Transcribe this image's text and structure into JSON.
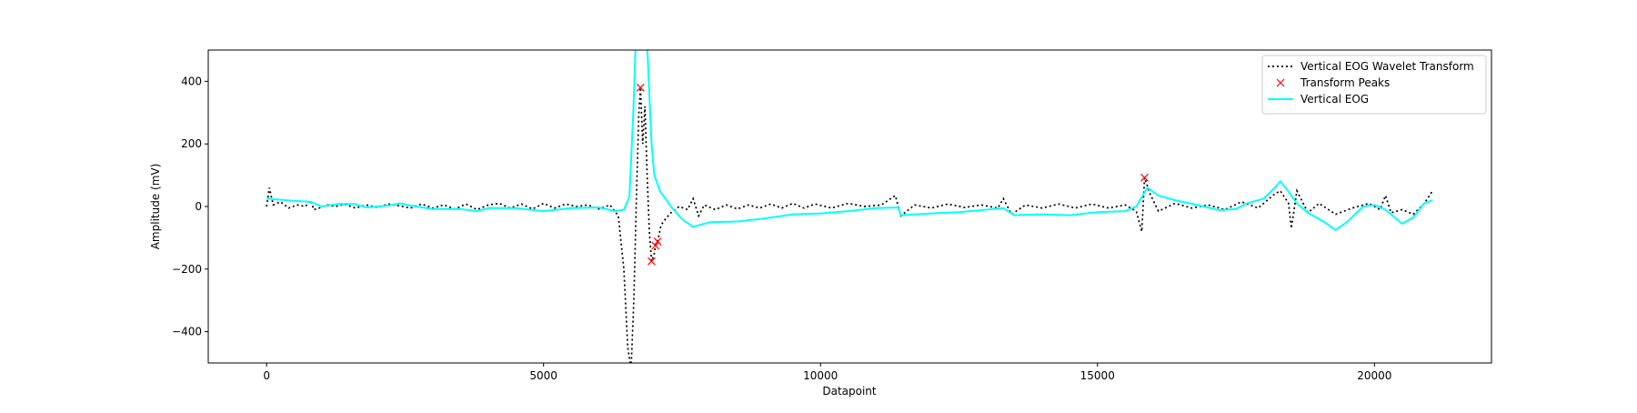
{
  "chart_data": {
    "type": "line",
    "xlabel": "Datapoint",
    "ylabel": "Amplitude (mV)",
    "xlim": [
      -1053,
      22113
    ],
    "ylim": [
      -500,
      500
    ],
    "xticks": [
      0,
      5000,
      10000,
      15000,
      20000
    ],
    "yticks": [
      {
        "value": -400,
        "label": "−400"
      },
      {
        "value": -200,
        "label": "−200"
      },
      0,
      200,
      400
    ],
    "legend": "upper right",
    "series": [
      {
        "name": "Vertical EOG Wavelet Transform",
        "color": "#000000",
        "linestyle": "dotted",
        "x": [
          0,
          50,
          120,
          250,
          400,
          550,
          700,
          800,
          850,
          950,
          1100,
          1250,
          1400,
          1600,
          1800,
          2000,
          2200,
          2400,
          2600,
          2800,
          3000,
          3200,
          3400,
          3600,
          3800,
          4000,
          4200,
          4400,
          4600,
          4800,
          5000,
          5200,
          5400,
          5600,
          5800,
          6000,
          6200,
          6350,
          6450,
          6520,
          6580,
          6630,
          6680,
          6720,
          6750,
          6790,
          6830,
          6870,
          6910,
          6950,
          7000,
          7020,
          7060,
          7120,
          7200,
          7300,
          7450,
          7600,
          7700,
          7800,
          7900,
          8100,
          8300,
          8500,
          8700,
          8900,
          9100,
          9300,
          9500,
          9700,
          9900,
          10200,
          10500,
          10800,
          11100,
          11350,
          11450,
          11700,
          12000,
          12300,
          12600,
          12900,
          13200,
          13300,
          13450,
          13700,
          14000,
          14300,
          14600,
          14900,
          15200,
          15500,
          15700,
          15800,
          15850,
          15950,
          16100,
          16400,
          16700,
          17000,
          17300,
          17600,
          17900,
          18200,
          18300,
          18450,
          18500,
          18600,
          18800,
          19000,
          19300,
          19600,
          19900,
          20100,
          20200,
          20300,
          20500,
          20700,
          20900,
          21050
        ],
        "values": [
          0,
          60,
          5,
          15,
          -5,
          5,
          0,
          20,
          -10,
          -5,
          5,
          0,
          8,
          -5,
          5,
          -3,
          8,
          2,
          -5,
          8,
          -5,
          5,
          -8,
          8,
          -10,
          5,
          10,
          -5,
          8,
          -8,
          10,
          -5,
          8,
          0,
          5,
          -8,
          5,
          -30,
          -200,
          -450,
          -520,
          -300,
          50,
          300,
          380,
          200,
          320,
          100,
          -80,
          -175,
          -150,
          -125,
          -112,
          -60,
          -40,
          -20,
          0,
          -10,
          25,
          -30,
          5,
          -10,
          5,
          -8,
          5,
          -5,
          8,
          -5,
          10,
          -5,
          8,
          -5,
          10,
          0,
          5,
          35,
          -30,
          5,
          -5,
          8,
          -3,
          5,
          -5,
          25,
          -25,
          5,
          -5,
          8,
          -5,
          8,
          -5,
          5,
          -15,
          -80,
          92,
          40,
          -15,
          10,
          -5,
          5,
          -10,
          15,
          -5,
          40,
          50,
          10,
          -70,
          50,
          -20,
          10,
          -25,
          -5,
          10,
          -10,
          35,
          -20,
          -10,
          -25,
          10,
          50
        ]
      },
      {
        "name": "Transform Peaks",
        "color": "#ff0000",
        "marker": "x",
        "x": [
          6750,
          6950,
          7020,
          7060,
          15850
        ],
        "values": [
          380,
          -175,
          -125,
          -112,
          92
        ]
      },
      {
        "name": "Vertical EOG",
        "color": "#00ffff",
        "linestyle": "solid",
        "x": [
          0,
          500,
          800,
          1000,
          1300,
          1600,
          1800,
          2200,
          2400,
          2700,
          3000,
          3500,
          3800,
          4000,
          4500,
          5000,
          5500,
          6000,
          6300,
          6450,
          6550,
          6620,
          6680,
          6850,
          6900,
          6950,
          7000,
          7100,
          7300,
          7500,
          7700,
          8000,
          8500,
          9000,
          9500,
          10000,
          10500,
          11000,
          11400,
          11450,
          12000,
          12500,
          13000,
          13300,
          13500,
          14000,
          14500,
          15000,
          15500,
          15700,
          15800,
          15900,
          16100,
          16400,
          16800,
          17200,
          17500,
          17700,
          18000,
          18200,
          18300,
          18400,
          18600,
          18800,
          19100,
          19300,
          19500,
          19800,
          20000,
          20200,
          20500,
          20700,
          20900,
          21050
        ],
        "values": [
          25,
          18,
          15,
          0,
          8,
          8,
          -3,
          3,
          10,
          0,
          -8,
          -8,
          -15,
          -5,
          -5,
          -15,
          -5,
          -3,
          -15,
          -10,
          30,
          300,
          600,
          600,
          400,
          200,
          100,
          50,
          0,
          -40,
          -65,
          -50,
          -48,
          -38,
          -25,
          -22,
          -15,
          -5,
          -3,
          -28,
          -22,
          -18,
          -10,
          -5,
          -28,
          -25,
          -28,
          -18,
          -15,
          0,
          30,
          60,
          35,
          20,
          5,
          -12,
          -8,
          10,
          25,
          60,
          80,
          60,
          10,
          -20,
          -50,
          -75,
          -50,
          0,
          5,
          -10,
          -55,
          -35,
          10,
          20
        ]
      }
    ]
  }
}
